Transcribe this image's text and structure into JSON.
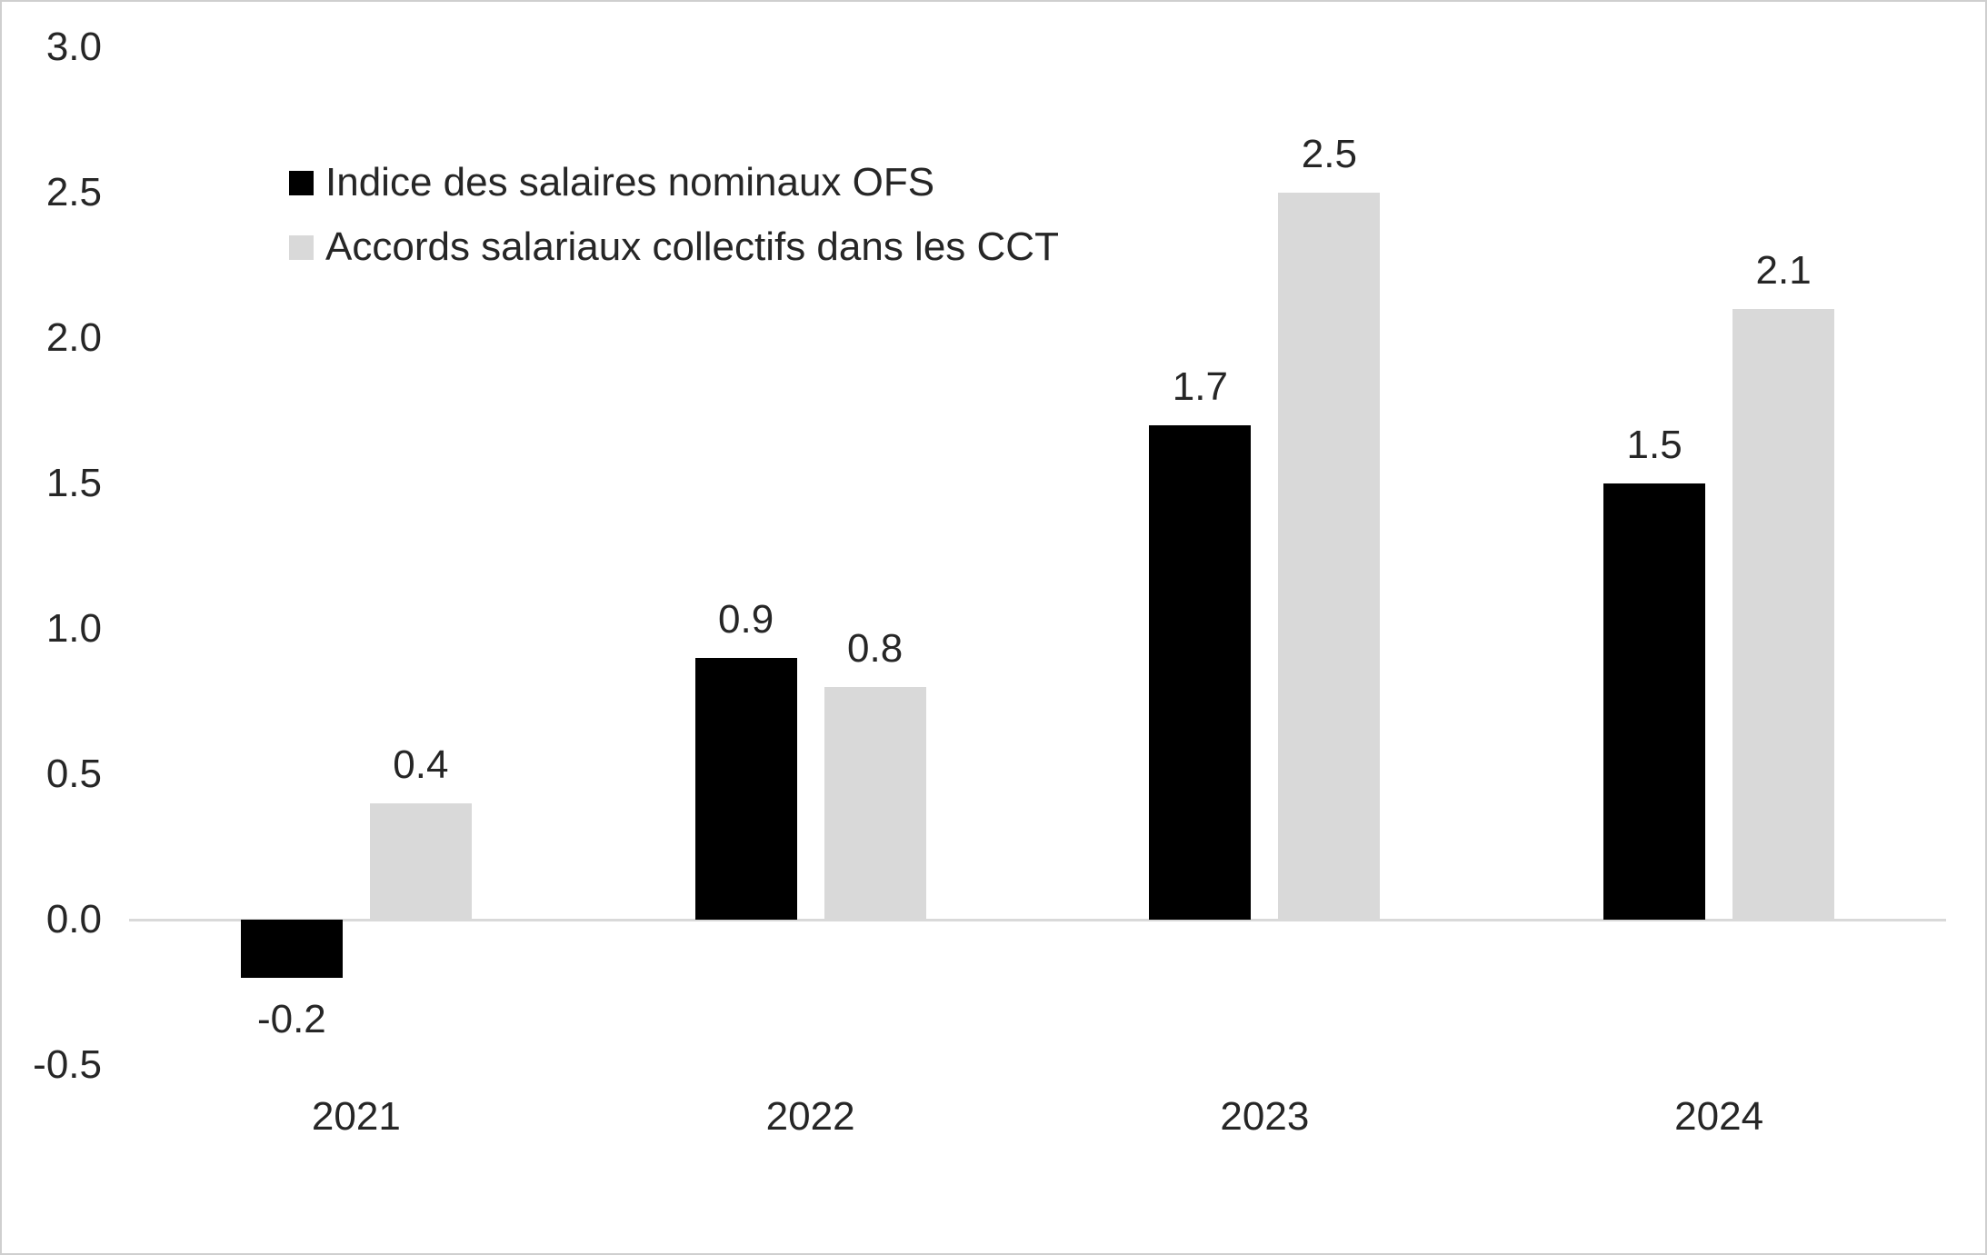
{
  "chart_data": {
    "type": "bar",
    "title": "",
    "xlabel": "",
    "ylabel": "",
    "categories": [
      "2021",
      "2022",
      "2023",
      "2024"
    ],
    "series": [
      {
        "name": "Indice des salaires nominaux OFS",
        "color": "#000000",
        "values": [
          -0.2,
          0.9,
          1.7,
          1.5
        ],
        "labels": [
          "-0.2",
          "0.9",
          "1.7",
          "1.5"
        ]
      },
      {
        "name": "Accords salariaux collectifs dans les CCT",
        "color": "#d9d9d9",
        "values": [
          0.4,
          0.8,
          2.5,
          2.1
        ],
        "labels": [
          "0.4",
          "0.8",
          "2.5",
          "2.1"
        ]
      }
    ],
    "y_axis": {
      "min": -0.5,
      "max": 3.0,
      "step": 0.5,
      "tick_labels": [
        "3.0",
        "2.5",
        "2.0",
        "1.5",
        "1.0",
        "0.5",
        "0.0",
        "-0.5"
      ]
    },
    "grid": false,
    "legend_position": "top-left"
  }
}
